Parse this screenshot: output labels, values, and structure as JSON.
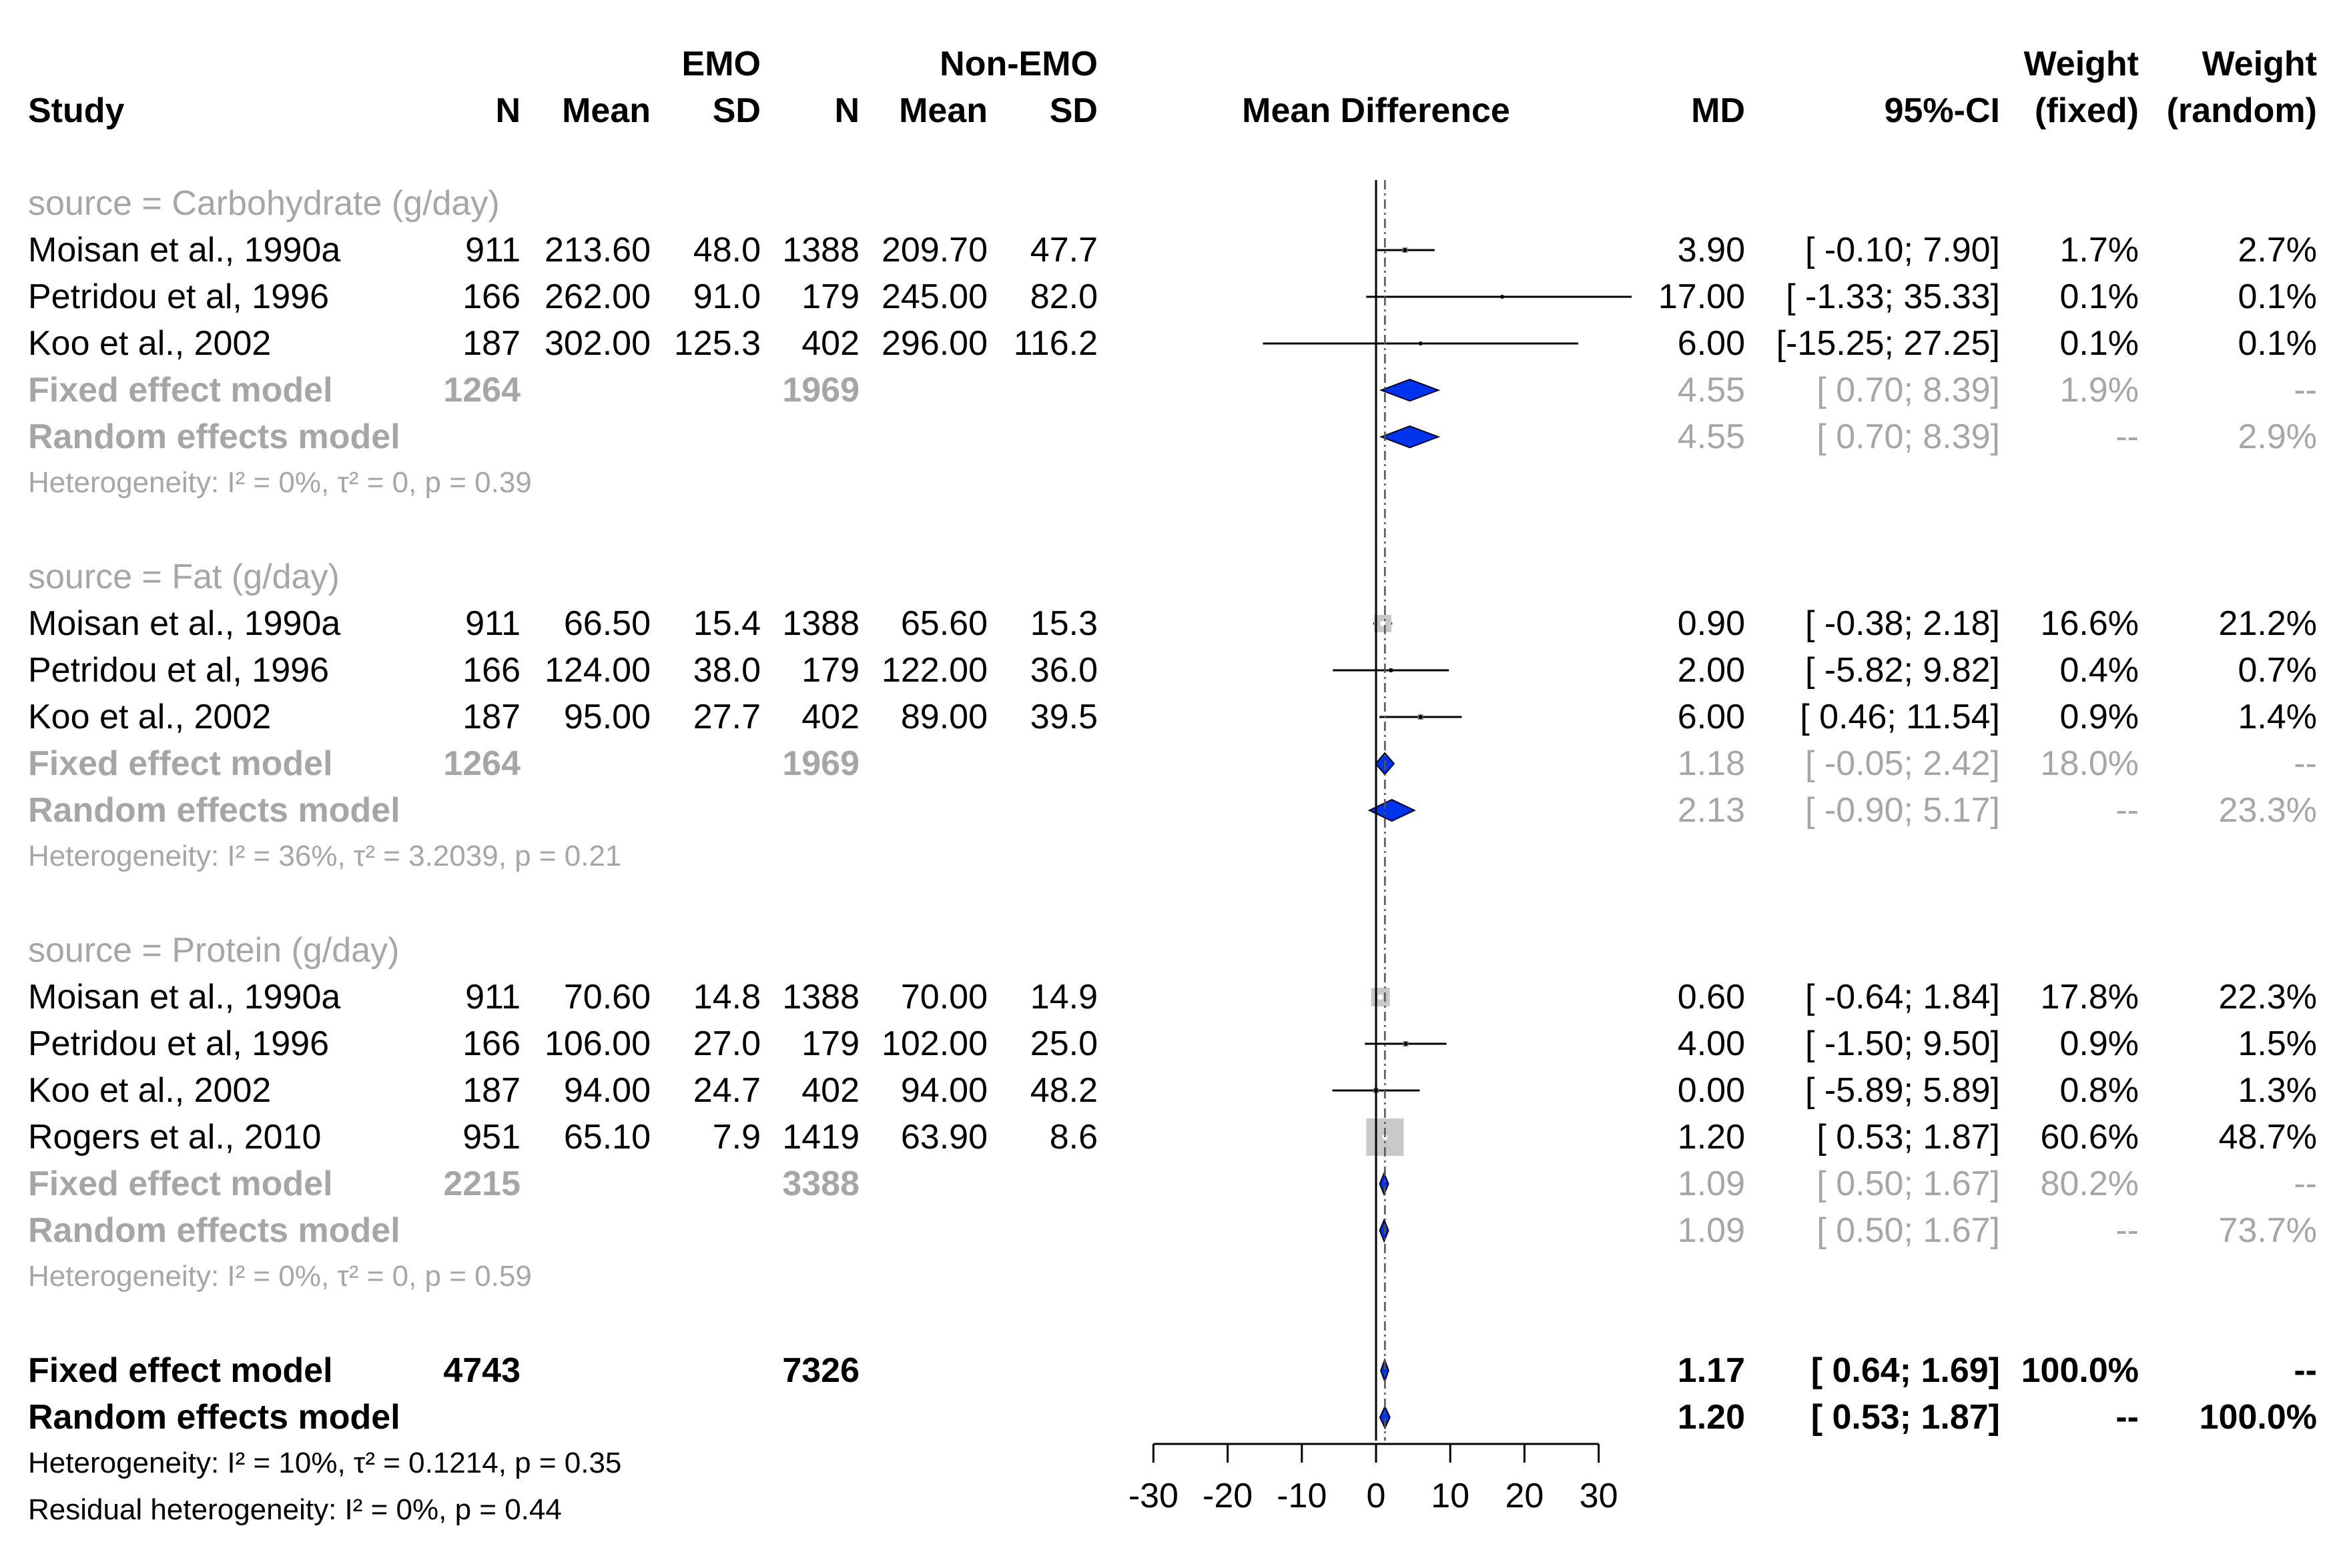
{
  "chart_data": {
    "type": "forest",
    "columns": {
      "group_emo": "EMO",
      "group_nonemo": "Non-EMO",
      "study": "Study",
      "n": "N",
      "mean": "Mean",
      "sd": "SD",
      "plot_title": "Mean Difference",
      "md": "MD",
      "ci": "95%-CI",
      "weight": "Weight",
      "weight_fixed": "(fixed)",
      "weight_random": "(random)"
    },
    "xaxis": {
      "range": [
        -30,
        30
      ],
      "ticks": [
        -30,
        -20,
        -10,
        0,
        10,
        20,
        30
      ],
      "tick_labels": [
        "-30",
        "-20",
        "-10",
        "0",
        "10",
        "20",
        "30"
      ],
      "reference_line": 0,
      "overall_line": 1.2
    },
    "rows": [
      {
        "kind": "group",
        "label": "source = Carbohydrate (g/day)"
      },
      {
        "kind": "study",
        "label": "Moisan et al., 1990a",
        "n1": "911",
        "m1": "213.60",
        "s1": "48.0",
        "n2": "1388",
        "m2": "209.70",
        "s2": "47.7",
        "md_text": "3.90",
        "ci_text": "[ -0.10; 7.90]",
        "wf": "1.7%",
        "wr": "2.7%",
        "md": 3.9,
        "lo": -0.1,
        "hi": 7.9,
        "box": 8
      },
      {
        "kind": "study",
        "label": "Petridou et al, 1996",
        "n1": "166",
        "m1": "262.00",
        "s1": "91.0",
        "n2": "179",
        "m2": "245.00",
        "s2": "82.0",
        "md_text": "17.00",
        "ci_text": "[ -1.33; 35.33]",
        "wf": "0.1%",
        "wr": "0.1%",
        "md": 17.0,
        "lo": -1.33,
        "hi": 35.33,
        "box": 4
      },
      {
        "kind": "study",
        "label": "Koo et al., 2002",
        "n1": "187",
        "m1": "302.00",
        "s1": "125.3",
        "n2": "402",
        "m2": "296.00",
        "s2": "116.2",
        "md_text": "6.00",
        "ci_text": "[-15.25; 27.25]",
        "wf": "0.1%",
        "wr": "0.1%",
        "md": 6.0,
        "lo": -15.25,
        "hi": 27.25,
        "box": 4
      },
      {
        "kind": "fixed",
        "label": "Fixed effect model",
        "n1": "1264",
        "n2": "1969",
        "md_text": "4.55",
        "ci_text": "[ 0.70; 8.39]",
        "wf": "1.9%",
        "wr": "--",
        "md": 4.55,
        "lo": 0.7,
        "hi": 8.39
      },
      {
        "kind": "random",
        "label": "Random effects model",
        "md_text": "4.55",
        "ci_text": "[ 0.70; 8.39]",
        "wf": "--",
        "wr": "2.9%",
        "md": 4.55,
        "lo": 0.7,
        "hi": 8.39
      },
      {
        "kind": "het",
        "label": "Heterogeneity: I² = 0%, τ² = 0, p = 0.39"
      },
      {
        "kind": "blank"
      },
      {
        "kind": "group",
        "label": "source = Fat (g/day)"
      },
      {
        "kind": "study",
        "label": "Moisan et al., 1990a",
        "n1": "911",
        "m1": "66.50",
        "s1": "15.4",
        "n2": "1388",
        "m2": "65.60",
        "s2": "15.3",
        "md_text": "0.90",
        "ci_text": "[ -0.38; 2.18]",
        "wf": "16.6%",
        "wr": "21.2%",
        "md": 0.9,
        "lo": -0.38,
        "hi": 2.18,
        "box": 26
      },
      {
        "kind": "study",
        "label": "Petridou et al, 1996",
        "n1": "166",
        "m1": "124.00",
        "s1": "38.0",
        "n2": "179",
        "m2": "122.00",
        "s2": "36.0",
        "md_text": "2.00",
        "ci_text": "[ -5.82; 9.82]",
        "wf": "0.4%",
        "wr": "0.7%",
        "md": 2.0,
        "lo": -5.82,
        "hi": 9.82,
        "box": 6
      },
      {
        "kind": "study",
        "label": "Koo et al., 2002",
        "n1": "187",
        "m1": "95.00",
        "s1": "27.7",
        "n2": "402",
        "m2": "89.00",
        "s2": "39.5",
        "md_text": "6.00",
        "ci_text": "[ 0.46; 11.54]",
        "wf": "0.9%",
        "wr": "1.4%",
        "md": 6.0,
        "lo": 0.46,
        "hi": 11.54,
        "box": 8
      },
      {
        "kind": "fixed",
        "label": "Fixed effect model",
        "n1": "1264",
        "n2": "1969",
        "md_text": "1.18",
        "ci_text": "[ -0.05; 2.42]",
        "wf": "18.0%",
        "wr": "--",
        "md": 1.18,
        "lo": -0.05,
        "hi": 2.42
      },
      {
        "kind": "random",
        "label": "Random effects model",
        "md_text": "2.13",
        "ci_text": "[ -0.90; 5.17]",
        "wf": "--",
        "wr": "23.3%",
        "md": 2.13,
        "lo": -0.9,
        "hi": 5.17
      },
      {
        "kind": "het",
        "label": "Heterogeneity: I² = 36%, τ² = 3.2039, p = 0.21"
      },
      {
        "kind": "blank"
      },
      {
        "kind": "group",
        "label": "source = Protein (g/day)"
      },
      {
        "kind": "study",
        "label": "Moisan et al., 1990a",
        "n1": "911",
        "m1": "70.60",
        "s1": "14.8",
        "n2": "1388",
        "m2": "70.00",
        "s2": "14.9",
        "md_text": "0.60",
        "ci_text": "[ -0.64; 1.84]",
        "wf": "17.8%",
        "wr": "22.3%",
        "md": 0.6,
        "lo": -0.64,
        "hi": 1.84,
        "box": 28
      },
      {
        "kind": "study",
        "label": "Petridou et al, 1996",
        "n1": "166",
        "m1": "106.00",
        "s1": "27.0",
        "n2": "179",
        "m2": "102.00",
        "s2": "25.0",
        "md_text": "4.00",
        "ci_text": "[ -1.50; 9.50]",
        "wf": "0.9%",
        "wr": "1.5%",
        "md": 4.0,
        "lo": -1.5,
        "hi": 9.5,
        "box": 8
      },
      {
        "kind": "study",
        "label": "Koo et al., 2002",
        "n1": "187",
        "m1": "94.00",
        "s1": "24.7",
        "n2": "402",
        "m2": "94.00",
        "s2": "48.2",
        "md_text": "0.00",
        "ci_text": "[ -5.89; 5.89]",
        "wf": "0.8%",
        "wr": "1.3%",
        "md": 0.0,
        "lo": -5.89,
        "hi": 5.89,
        "box": 8
      },
      {
        "kind": "study",
        "label": "Rogers et al., 2010",
        "n1": "951",
        "m1": "65.10",
        "s1": "7.9",
        "n2": "1419",
        "m2": "63.90",
        "s2": "8.6",
        "md_text": "1.20",
        "ci_text": "[ 0.53; 1.87]",
        "wf": "60.6%",
        "wr": "48.7%",
        "md": 1.2,
        "lo": 0.53,
        "hi": 1.87,
        "box": 56
      },
      {
        "kind": "fixed",
        "label": "Fixed effect model",
        "n1": "2215",
        "n2": "3388",
        "md_text": "1.09",
        "ci_text": "[ 0.50; 1.67]",
        "wf": "80.2%",
        "wr": "--",
        "md": 1.09,
        "lo": 0.5,
        "hi": 1.67
      },
      {
        "kind": "random",
        "label": "Random effects model",
        "md_text": "1.09",
        "ci_text": "[ 0.50; 1.67]",
        "wf": "--",
        "wr": "73.7%",
        "md": 1.09,
        "lo": 0.5,
        "hi": 1.67
      },
      {
        "kind": "het",
        "label": "Heterogeneity: I² = 0%, τ² = 0, p = 0.59"
      },
      {
        "kind": "blank"
      },
      {
        "kind": "overall_fixed",
        "label": "Fixed effect model",
        "n1": "4743",
        "n2": "7326",
        "md_text": "1.17",
        "ci_text": "[ 0.64; 1.69]",
        "wf": "100.0%",
        "wr": "--",
        "md": 1.17,
        "lo": 0.64,
        "hi": 1.69
      },
      {
        "kind": "overall_random",
        "label": "Random effects model",
        "md_text": "1.20",
        "ci_text": "[ 0.53; 1.87]",
        "wf": "--",
        "wr": "100.0%",
        "md": 1.2,
        "lo": 0.53,
        "hi": 1.87
      },
      {
        "kind": "overall_het",
        "label": "Heterogeneity: I² = 10%, τ² = 0.1214, p = 0.35"
      },
      {
        "kind": "overall_het",
        "label": "Residual heterogeneity: I² = 0%, p = 0.44"
      }
    ]
  }
}
